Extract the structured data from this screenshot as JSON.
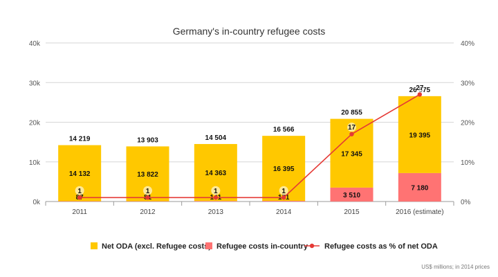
{
  "chart_data": {
    "type": "bar",
    "title": "Germany's in-country refugee costs",
    "note": "US$ millions; in 2014 prices",
    "categories": [
      "2011",
      "2012",
      "2013",
      "2014",
      "2015",
      "2016 (estimate)"
    ],
    "ylim": [
      0,
      40000
    ],
    "y_ticks": [
      "0k",
      "10k",
      "20k",
      "30k",
      "40k"
    ],
    "y2lim": [
      0,
      40
    ],
    "y2_ticks": [
      "0%",
      "10%",
      "20%",
      "30%",
      "40%"
    ],
    "totals": [
      "14 219",
      "13 903",
      "14 504",
      "16 566",
      "20 855",
      "26 575"
    ],
    "series": [
      {
        "name": "Net ODA (excl. Refugee costs)",
        "kind": "bar",
        "stack": true,
        "color": "#FFC800",
        "values": [
          14132,
          13822,
          14363,
          16395,
          17345,
          19395
        ],
        "labels": [
          "14 132",
          "13 822",
          "14 363",
          "16 395",
          "17 345",
          "19 395"
        ]
      },
      {
        "name": "Refugee costs in-country",
        "kind": "bar",
        "stack": true,
        "color": "#FF7373",
        "values": [
          87,
          81,
          141,
          171,
          3510,
          7180
        ],
        "labels": [
          "87",
          "81",
          "141",
          "171",
          "3 510",
          "7 180"
        ]
      },
      {
        "name": "Refugee costs as % of net ODA",
        "kind": "line",
        "axis": "right",
        "color": "#E53935",
        "values": [
          1,
          1,
          1,
          1,
          17,
          27
        ],
        "labels": [
          "1",
          "1",
          "1",
          "1",
          "17",
          "27"
        ]
      }
    ],
    "grid": true,
    "legend": "bottom"
  }
}
